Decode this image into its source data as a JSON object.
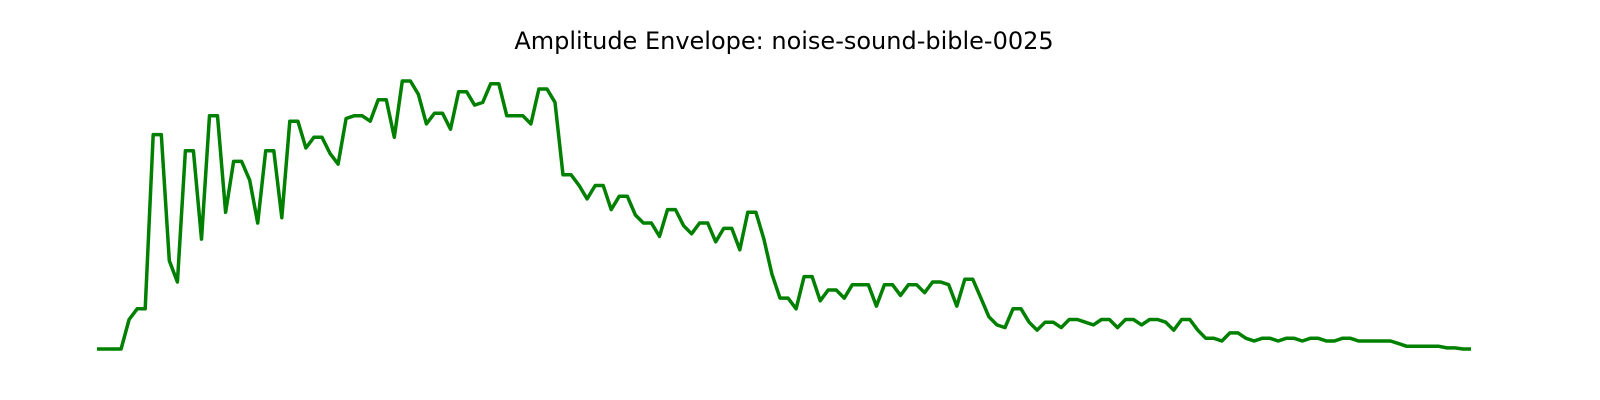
{
  "chart_data": {
    "type": "line",
    "title": "Amplitude Envelope: noise-sound-bible-0025",
    "color": "#008000",
    "ylim": [
      0,
      1
    ],
    "values": [
      0,
      0,
      0,
      0,
      0.11,
      0.15,
      0.15,
      0.8,
      0.8,
      0.33,
      0.25,
      0.74,
      0.74,
      0.41,
      0.87,
      0.87,
      0.51,
      0.7,
      0.7,
      0.63,
      0.47,
      0.74,
      0.74,
      0.49,
      0.85,
      0.85,
      0.75,
      0.79,
      0.79,
      0.73,
      0.69,
      0.86,
      0.87,
      0.87,
      0.85,
      0.93,
      0.93,
      0.79,
      1.0,
      1.0,
      0.95,
      0.84,
      0.88,
      0.88,
      0.82,
      0.96,
      0.96,
      0.91,
      0.92,
      0.99,
      0.99,
      0.87,
      0.87,
      0.87,
      0.84,
      0.97,
      0.97,
      0.92,
      0.65,
      0.65,
      0.61,
      0.56,
      0.61,
      0.61,
      0.52,
      0.57,
      0.57,
      0.5,
      0.47,
      0.47,
      0.42,
      0.52,
      0.52,
      0.46,
      0.43,
      0.47,
      0.47,
      0.4,
      0.45,
      0.45,
      0.37,
      0.51,
      0.51,
      0.41,
      0.28,
      0.19,
      0.19,
      0.15,
      0.27,
      0.27,
      0.18,
      0.22,
      0.22,
      0.19,
      0.24,
      0.24,
      0.24,
      0.16,
      0.24,
      0.24,
      0.2,
      0.24,
      0.24,
      0.21,
      0.25,
      0.25,
      0.24,
      0.16,
      0.26,
      0.26,
      0.19,
      0.12,
      0.09,
      0.08,
      0.15,
      0.15,
      0.1,
      0.07,
      0.1,
      0.1,
      0.08,
      0.11,
      0.11,
      0.1,
      0.09,
      0.11,
      0.11,
      0.08,
      0.11,
      0.11,
      0.09,
      0.11,
      0.11,
      0.1,
      0.07,
      0.11,
      0.11,
      0.07,
      0.04,
      0.04,
      0.03,
      0.06,
      0.06,
      0.04,
      0.03,
      0.04,
      0.04,
      0.03,
      0.04,
      0.04,
      0.03,
      0.04,
      0.04,
      0.03,
      0.03,
      0.04,
      0.04,
      0.03,
      0.03,
      0.03,
      0.03,
      0.03,
      0.02,
      0.01,
      0.01,
      0.01,
      0.01,
      0.01,
      0.004,
      0.004,
      0,
      0
    ]
  }
}
